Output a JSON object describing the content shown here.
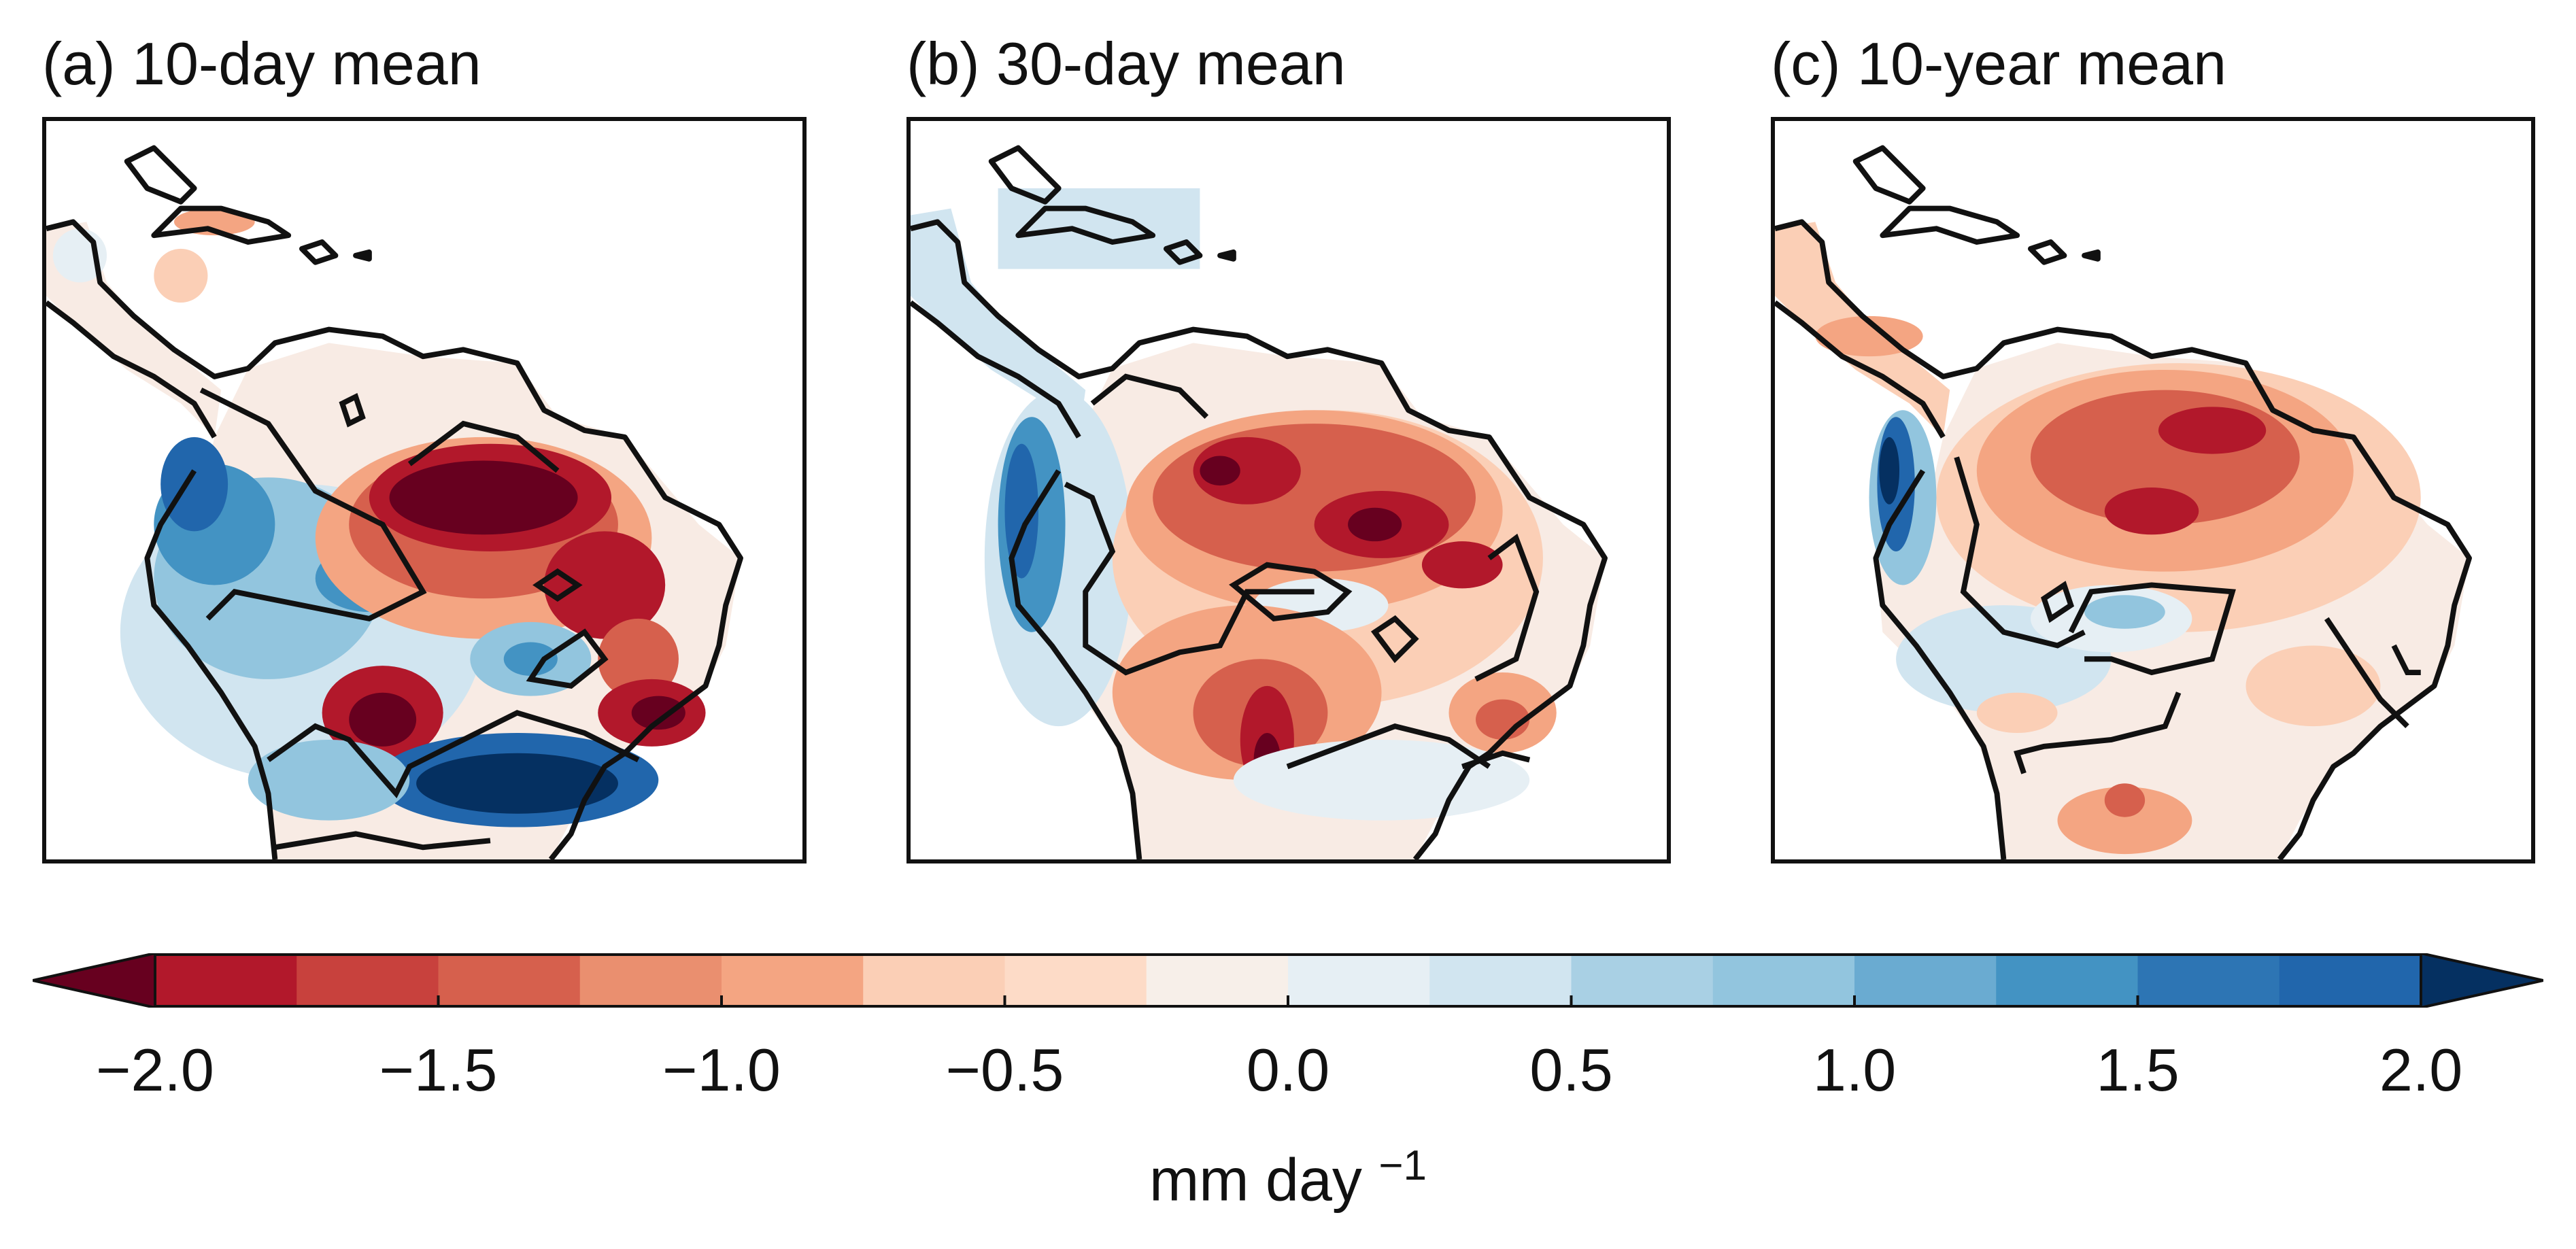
{
  "panels": [
    {
      "title": "(a) 10-day mean"
    },
    {
      "title": "(b) 30-day mean"
    },
    {
      "title": "(c) 10-year mean"
    }
  ],
  "colorbar": {
    "ticks": [
      "−2.0",
      "−1.5",
      "−1.0",
      "−0.5",
      "0.0",
      "0.5",
      "1.0",
      "1.5",
      "2.0"
    ],
    "unit_base": "mm day",
    "unit_exp": "−1",
    "levels": [
      -2.0,
      -1.75,
      -1.5,
      -1.25,
      -1.0,
      -0.75,
      -0.5,
      -0.25,
      0.0,
      0.25,
      0.5,
      0.75,
      1.0,
      1.25,
      1.5,
      1.75,
      2.0
    ],
    "extend": "both",
    "colors": [
      "#67001f",
      "#870a24",
      "#b2182b",
      "#c8413d",
      "#d6604d",
      "#ea8f6f",
      "#f4a582",
      "#fbcfb6",
      "#fddbc7",
      "#f7efe9",
      "#e6eff4",
      "#d1e5f0",
      "#a9d0e4",
      "#92c5de",
      "#6aabd1",
      "#4393c3",
      "#2d75b4",
      "#2166ac",
      "#0f3f7a",
      "#053061"
    ]
  },
  "colors": {
    "deep_red": "#67001f",
    "red": "#b2182b",
    "mid_red": "#d6604d",
    "light_red": "#f4a582",
    "pale_red": "#fbe3d6",
    "pale_blue": "#e6eff4",
    "light_blue": "#92c5de",
    "mid_blue": "#4393c3",
    "blue": "#2166ac",
    "deep_blue": "#053061",
    "coast": "#111111"
  }
}
